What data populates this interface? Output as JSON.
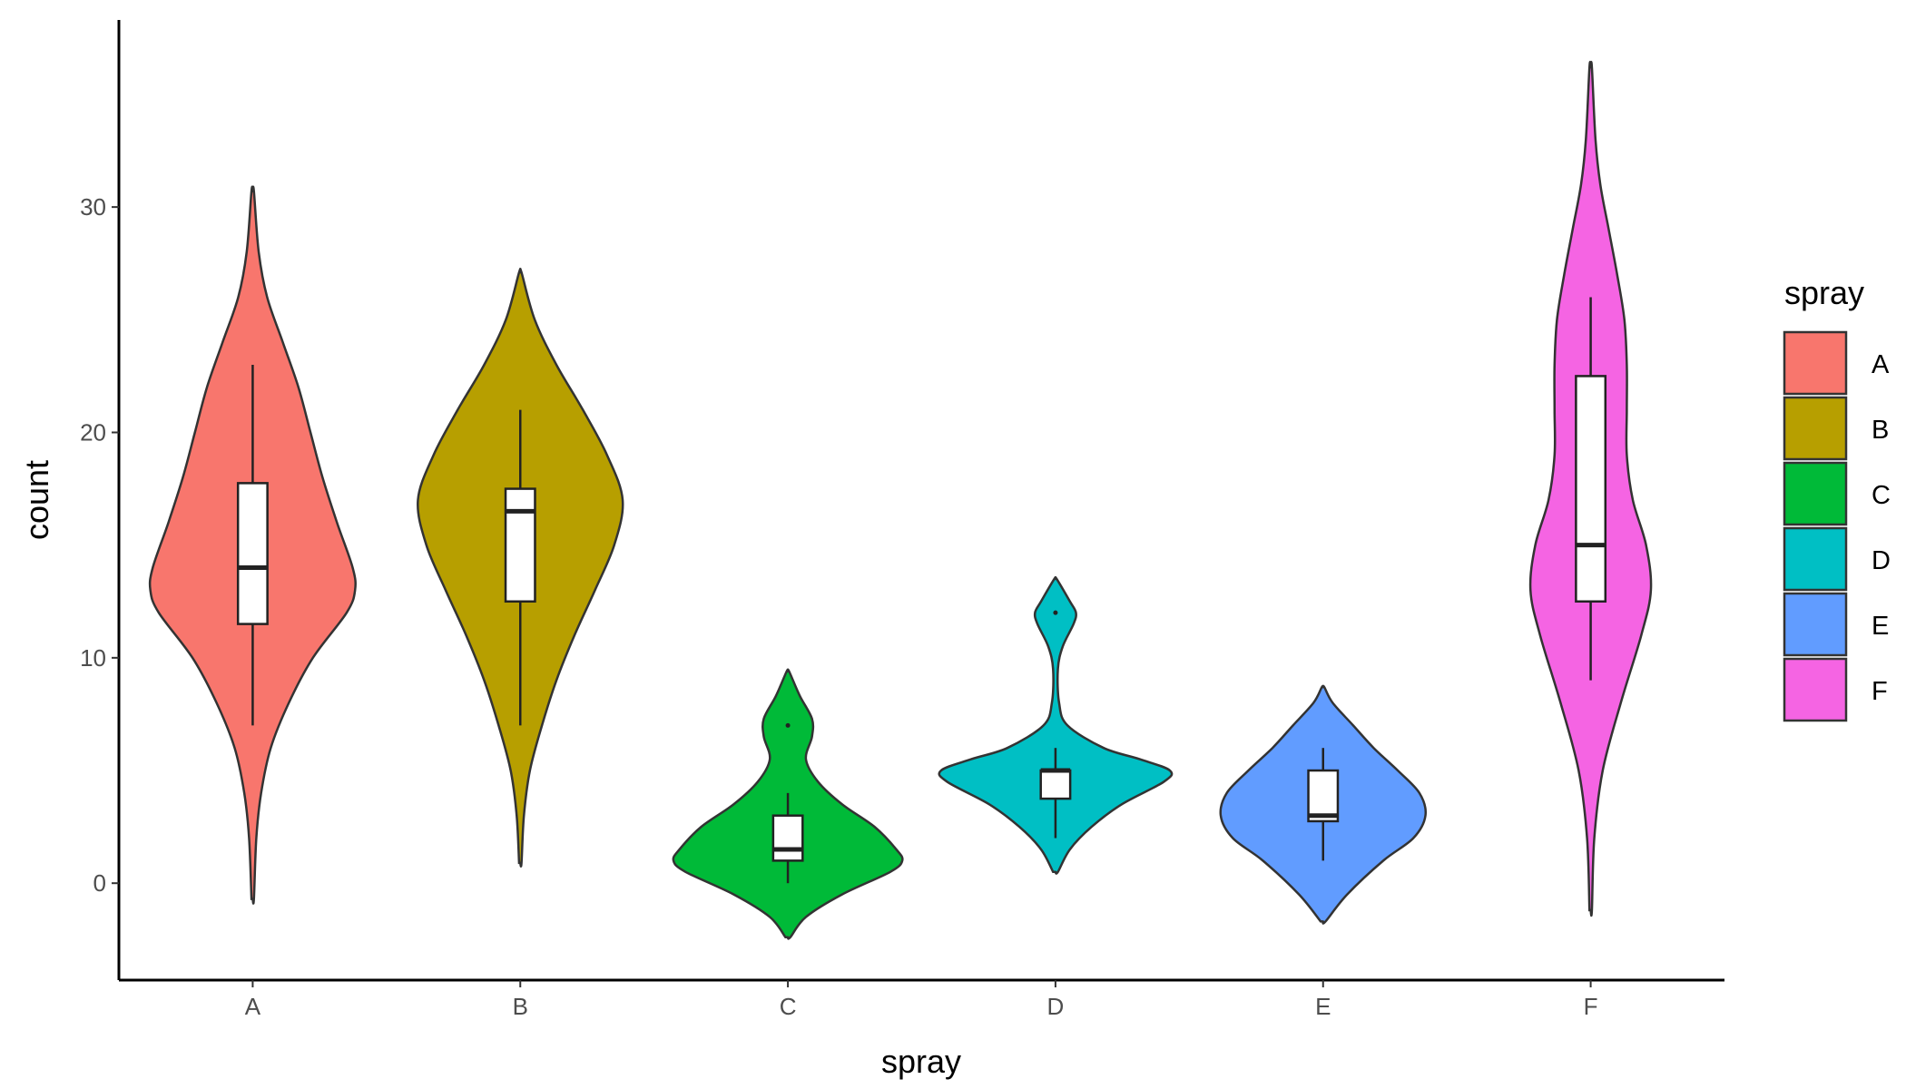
{
  "chart_data": {
    "type": "violin",
    "title": "",
    "xlabel": "spray",
    "ylabel": "count",
    "ylim": [
      -4.3,
      38.3
    ],
    "y_ticks": [
      0,
      10,
      20,
      30
    ],
    "categories": [
      "A",
      "B",
      "C",
      "D",
      "E",
      "F"
    ],
    "legend": {
      "title": "spray",
      "position": "right"
    },
    "grid": false,
    "series": [
      {
        "name": "A",
        "color": "#F8766D",
        "violin_range": [
          -0.7,
          30.7
        ],
        "density_profile": [
          [
            -0.7,
            0.01
          ],
          [
            2,
            0.03
          ],
          [
            4,
            0.07
          ],
          [
            6,
            0.15
          ],
          [
            8,
            0.3
          ],
          [
            10,
            0.5
          ],
          [
            12,
            0.78
          ],
          [
            13,
            0.85
          ],
          [
            14,
            0.83
          ],
          [
            16,
            0.7
          ],
          [
            18,
            0.58
          ],
          [
            20,
            0.48
          ],
          [
            22,
            0.38
          ],
          [
            24,
            0.25
          ],
          [
            26,
            0.12
          ],
          [
            28,
            0.05
          ],
          [
            30.7,
            0.01
          ]
        ],
        "box": {
          "whisker_low": 7,
          "q1": 11.5,
          "median": 14,
          "q3": 17.75,
          "whisker_high": 23
        },
        "outliers": []
      },
      {
        "name": "B",
        "color": "#B79F00",
        "violin_range": [
          0.9,
          27.1
        ],
        "density_profile": [
          [
            0.9,
            0.01
          ],
          [
            3,
            0.03
          ],
          [
            5,
            0.08
          ],
          [
            7,
            0.18
          ],
          [
            9,
            0.3
          ],
          [
            11,
            0.45
          ],
          [
            13,
            0.62
          ],
          [
            15,
            0.78
          ],
          [
            17,
            0.85
          ],
          [
            19,
            0.72
          ],
          [
            21,
            0.52
          ],
          [
            23,
            0.3
          ],
          [
            25,
            0.12
          ],
          [
            27.1,
            0.01
          ]
        ],
        "box": {
          "whisker_low": 7,
          "q1": 12.5,
          "median": 16.5,
          "q3": 17.5,
          "whisker_high": 21
        },
        "outliers": []
      },
      {
        "name": "C",
        "color": "#00BA38",
        "violin_range": [
          -2.4,
          9.4
        ],
        "density_profile": [
          [
            -2.4,
            0.02
          ],
          [
            -1.5,
            0.15
          ],
          [
            -0.5,
            0.45
          ],
          [
            0.5,
            0.85
          ],
          [
            1,
            0.95
          ],
          [
            1.5,
            0.9
          ],
          [
            2.5,
            0.72
          ],
          [
            3.5,
            0.45
          ],
          [
            4.5,
            0.25
          ],
          [
            5.5,
            0.15
          ],
          [
            6.5,
            0.2
          ],
          [
            7.3,
            0.2
          ],
          [
            8.3,
            0.1
          ],
          [
            9.4,
            0.01
          ]
        ],
        "box": {
          "whisker_low": 0,
          "q1": 1,
          "median": 1.5,
          "q3": 3,
          "whisker_high": 4
        },
        "outliers": [
          7
        ]
      },
      {
        "name": "D",
        "color": "#00BFC4",
        "violin_range": [
          0.5,
          13.5
        ],
        "density_profile": [
          [
            0.5,
            0.02
          ],
          [
            1.5,
            0.12
          ],
          [
            2.5,
            0.3
          ],
          [
            3.5,
            0.55
          ],
          [
            4.5,
            0.9
          ],
          [
            5,
            0.95
          ],
          [
            5.5,
            0.7
          ],
          [
            6,
            0.4
          ],
          [
            7,
            0.1
          ],
          [
            8,
            0.03
          ],
          [
            9.5,
            0.02
          ],
          [
            10.5,
            0.06
          ],
          [
            11.5,
            0.15
          ],
          [
            12,
            0.17
          ],
          [
            12.5,
            0.12
          ],
          [
            13.5,
            0.01
          ]
        ],
        "box": {
          "whisker_low": 2,
          "q1": 3.75,
          "median": 5,
          "q3": 5,
          "whisker_high": 6
        },
        "outliers": [
          12
        ]
      },
      {
        "name": "E",
        "color": "#619CFF",
        "violin_range": [
          -1.7,
          8.7
        ],
        "density_profile": [
          [
            -1.7,
            0.02
          ],
          [
            -0.5,
            0.2
          ],
          [
            1,
            0.5
          ],
          [
            2,
            0.75
          ],
          [
            3,
            0.85
          ],
          [
            4,
            0.8
          ],
          [
            5,
            0.62
          ],
          [
            6,
            0.42
          ],
          [
            7,
            0.25
          ],
          [
            8,
            0.08
          ],
          [
            8.7,
            0.01
          ]
        ],
        "box": {
          "whisker_low": 1,
          "q1": 2.75,
          "median": 3,
          "q3": 5,
          "whisker_high": 6
        },
        "outliers": []
      },
      {
        "name": "F",
        "color": "#F564E3",
        "violin_range": [
          -1.2,
          36.2
        ],
        "density_profile": [
          [
            -1.2,
            0.01
          ],
          [
            2,
            0.03
          ],
          [
            5,
            0.1
          ],
          [
            8,
            0.25
          ],
          [
            11,
            0.42
          ],
          [
            13,
            0.5
          ],
          [
            15,
            0.46
          ],
          [
            17,
            0.35
          ],
          [
            19,
            0.3
          ],
          [
            21,
            0.3
          ],
          [
            23,
            0.3
          ],
          [
            25,
            0.28
          ],
          [
            27,
            0.22
          ],
          [
            29,
            0.15
          ],
          [
            31,
            0.08
          ],
          [
            33,
            0.04
          ],
          [
            36.2,
            0.01
          ]
        ],
        "box": {
          "whisker_low": 9,
          "q1": 12.5,
          "median": 15,
          "q3": 22.5,
          "whisker_high": 26
        },
        "outliers": []
      }
    ]
  }
}
